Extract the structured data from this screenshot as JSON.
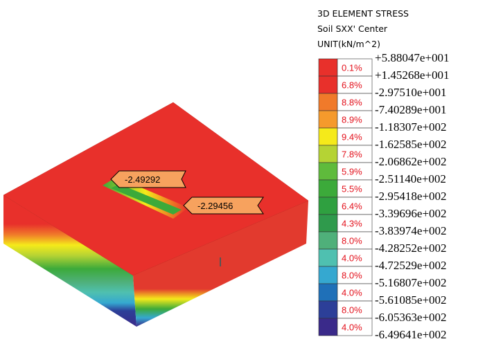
{
  "legend": {
    "title_lines": [
      "3D ELEMENT STRESS",
      "Soil SXX' Center",
      "UNIT(kN/m^2)"
    ],
    "rows": [
      {
        "percent": "0.1%",
        "color": "#e8302b"
      },
      {
        "percent": "6.8%",
        "color": "#e8302b"
      },
      {
        "percent": "8.8%",
        "color": "#f07a2a"
      },
      {
        "percent": "8.9%",
        "color": "#f59a2c"
      },
      {
        "percent": "9.4%",
        "color": "#f5ea1a"
      },
      {
        "percent": "7.8%",
        "color": "#b5d334"
      },
      {
        "percent": "5.9%",
        "color": "#5fbb3c"
      },
      {
        "percent": "5.5%",
        "color": "#3caa3a"
      },
      {
        "percent": "6.4%",
        "color": "#2fa040"
      },
      {
        "percent": "4.3%",
        "color": "#2f9a4c"
      },
      {
        "percent": "8.0%",
        "color": "#4fb07a"
      },
      {
        "percent": "4.0%",
        "color": "#4fc0b0"
      },
      {
        "percent": "8.0%",
        "color": "#35a8d0"
      },
      {
        "percent": "4.0%",
        "color": "#1f70b8"
      },
      {
        "percent": "8.0%",
        "color": "#2c3f98"
      },
      {
        "percent": "4.0%",
        "color": "#3a2a8a"
      }
    ],
    "values": [
      "+5.88047e+001",
      "+1.45268e+001",
      "-2.97510e+001",
      "-7.40289e+001",
      "-1.18307e+002",
      "-1.62585e+002",
      "-2.06862e+002",
      "-2.51140e+002",
      "-2.95418e+002",
      "-3.39696e+002",
      "-3.83974e+002",
      "-4.28252e+002",
      "-4.72529e+002",
      "-5.16807e+002",
      "-5.61085e+002",
      "-6.05363e+002",
      "-6.49641e+002"
    ]
  },
  "annotations": [
    "-2.49292",
    "-2.29456"
  ]
}
